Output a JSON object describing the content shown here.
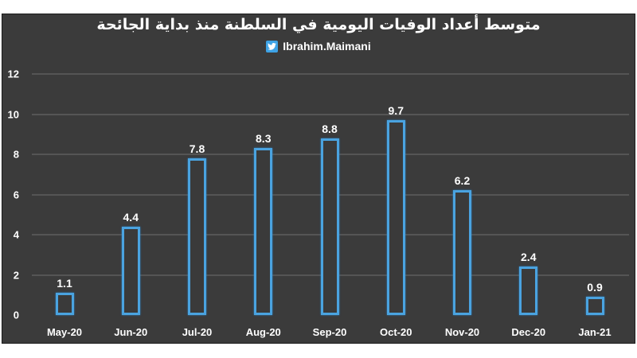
{
  "chart_data": {
    "type": "bar",
    "title": "متوسط أعداد الوفيات اليومية في السلطنة منذ بداية الجائحة",
    "subtitle": "Ibrahim.Maimani",
    "categories": [
      "May-20",
      "Jun-20",
      "Jul-20",
      "Aug-20",
      "Sep-20",
      "Oct-20",
      "Nov-20",
      "Dec-20",
      "Jan-21"
    ],
    "values": [
      1.1,
      4.4,
      7.8,
      8.3,
      8.8,
      9.7,
      6.2,
      2.4,
      0.9
    ],
    "value_labels": [
      "1.1",
      "4.4",
      "7.8",
      "8.3",
      "8.8",
      "9.7",
      "6.2",
      "2.4",
      "0.9"
    ],
    "xlabel": "",
    "ylabel": "",
    "ylim": [
      0,
      12
    ],
    "yticks": [
      "0",
      "2",
      "4",
      "6",
      "8",
      "10",
      "12"
    ],
    "grid": true,
    "legend": null
  },
  "header": {
    "title": "متوسط أعداد الوفيات اليومية في السلطنة منذ بداية الجائحة",
    "handle": "Ibrahim.Maimani",
    "handle_icon": "twitter-icon"
  },
  "colors": {
    "background": "#3b3b3b",
    "bar_outline": "#4aa3e0",
    "text": "#ffffff",
    "gridline": "#555555"
  }
}
